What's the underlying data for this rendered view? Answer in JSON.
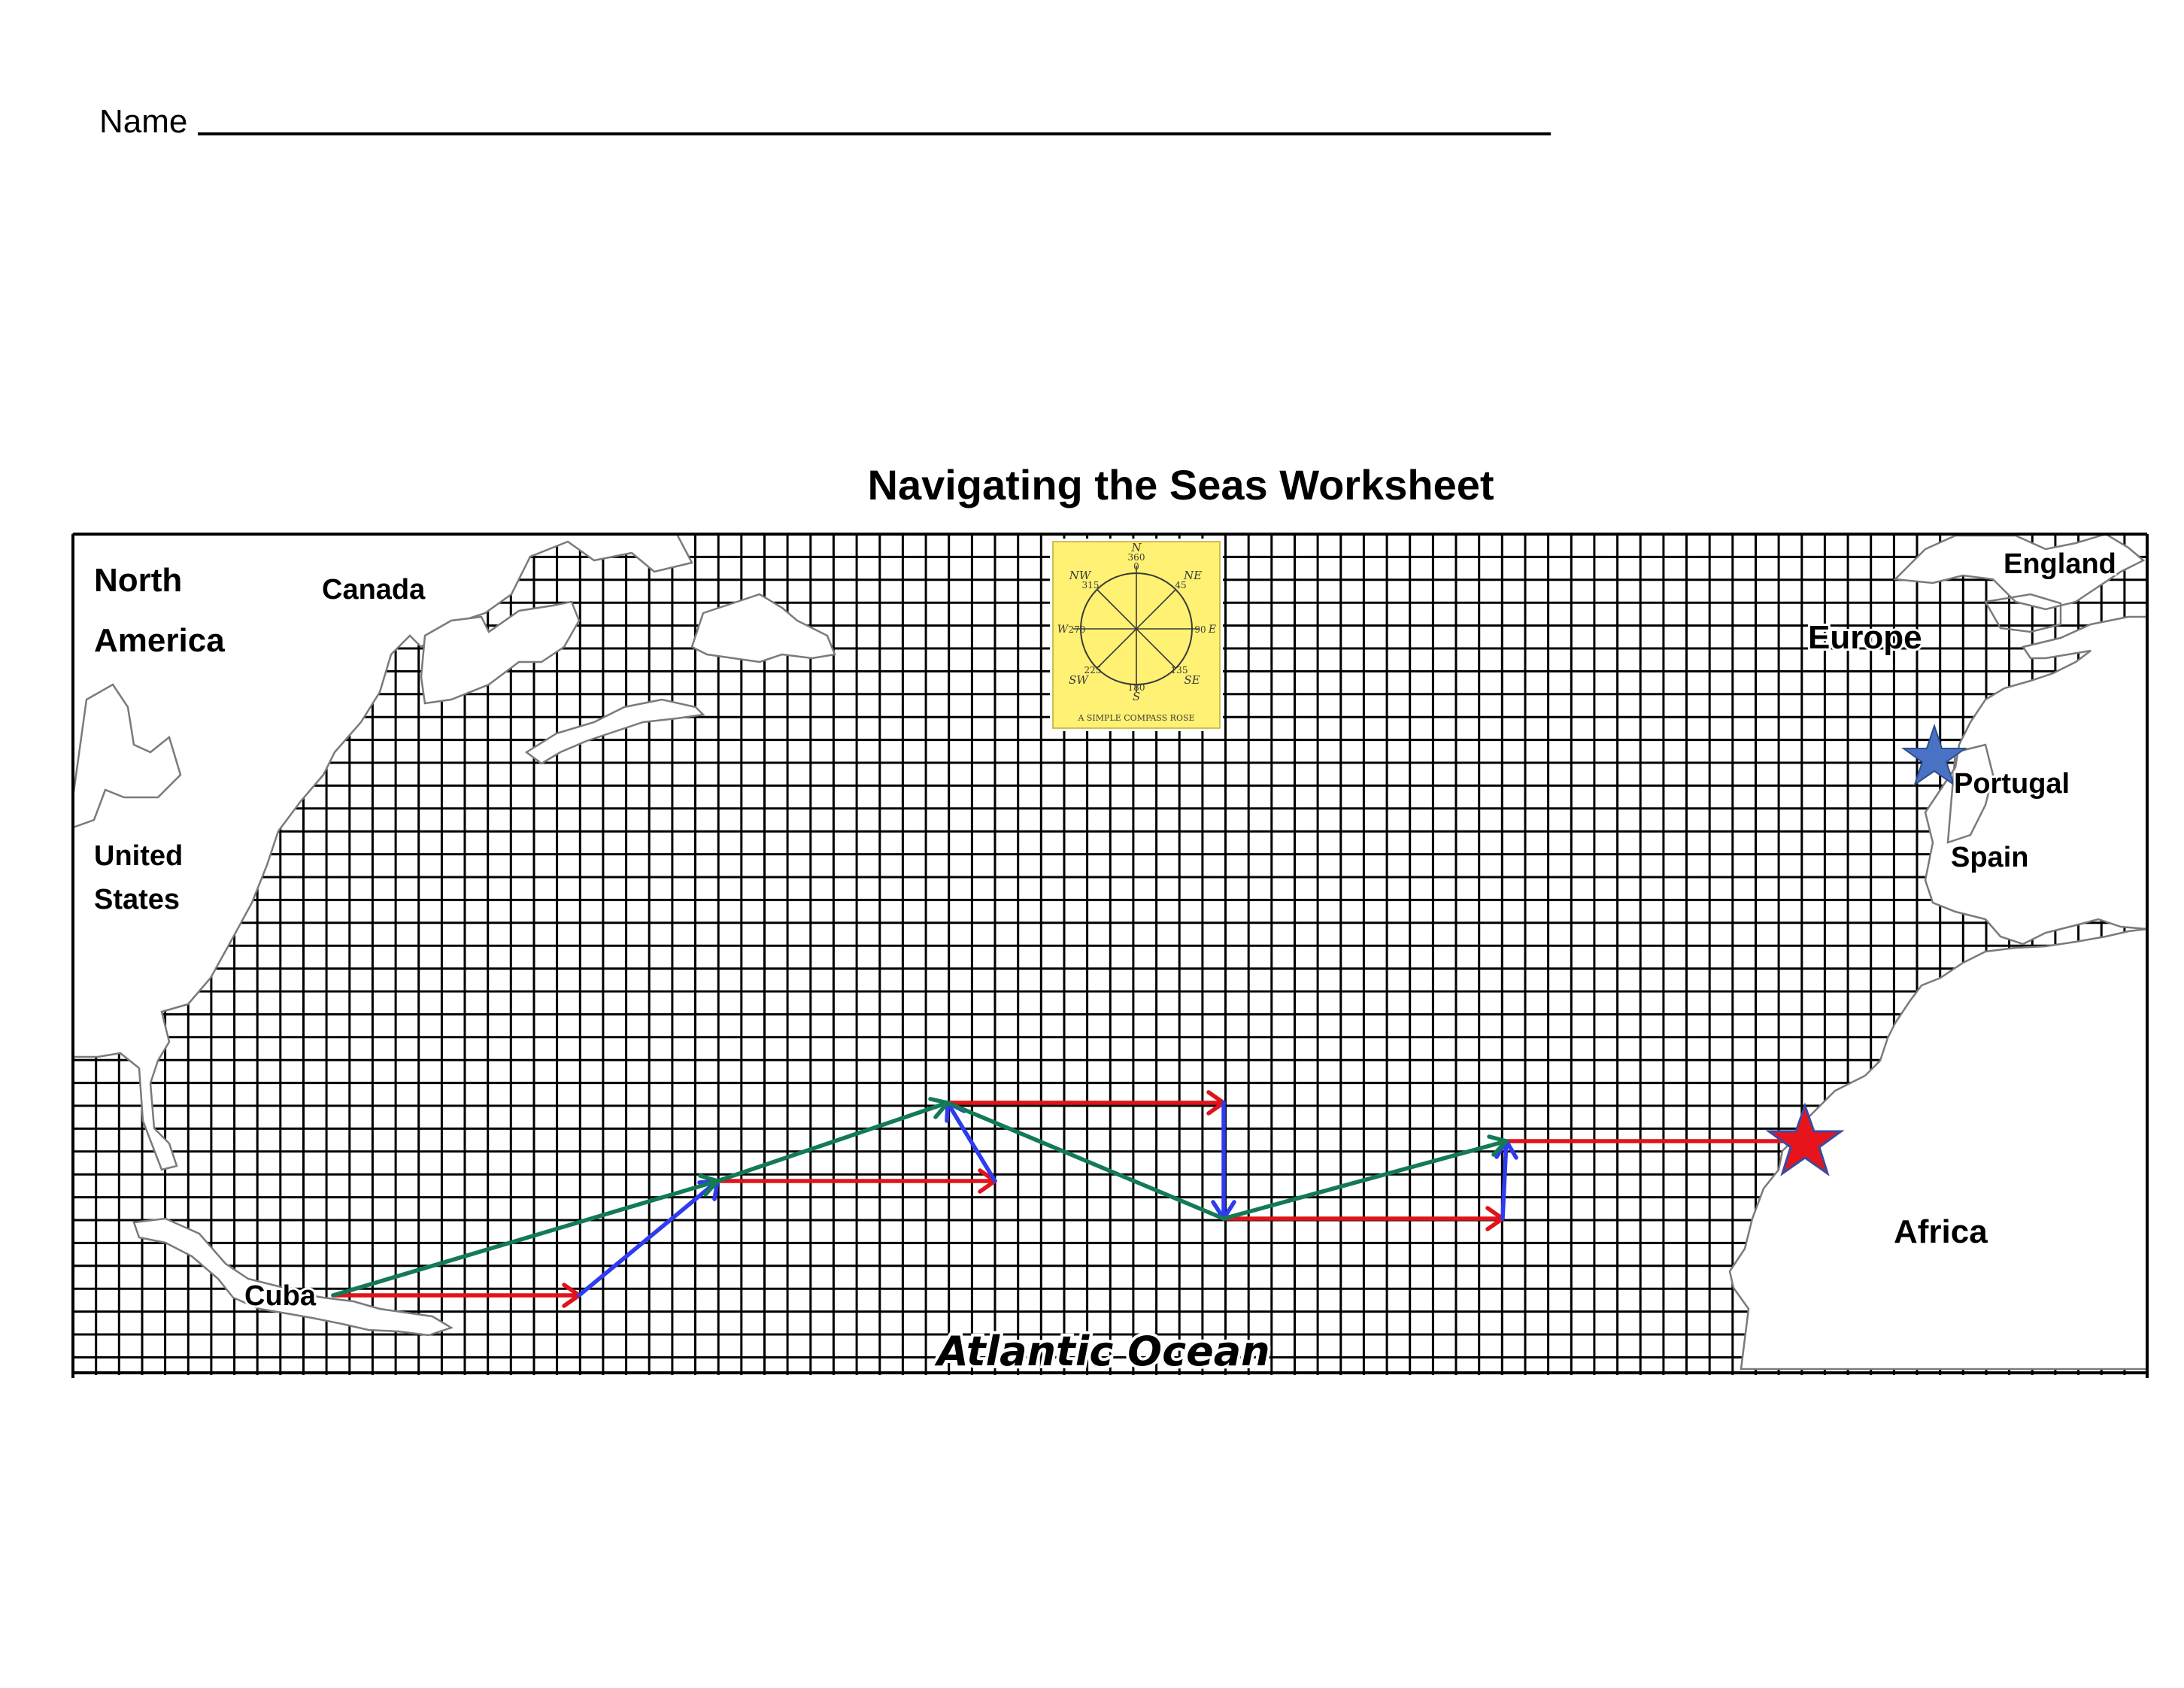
{
  "header": {
    "name_label": "Name"
  },
  "title": "Navigating the Seas Worksheet",
  "map": {
    "region_labels": {
      "north_america_line1": "North",
      "north_america_line2": "America",
      "canada": "Canada",
      "united_states_line1": "United",
      "united_states_line2": "States",
      "cuba": "Cuba",
      "europe": "Europe",
      "england": "England",
      "portugal": "Portugal",
      "spain": "Spain",
      "africa": "Africa",
      "ocean": "Atlantic Ocean"
    },
    "compass_rose": {
      "caption": "A SIMPLE COMPASS ROSE",
      "n": "N",
      "n_deg": "360",
      "n_deg2": "0",
      "ne": "NE",
      "ne_deg": "45",
      "e": "E",
      "e_deg": "90",
      "se": "SE",
      "se_deg": "135",
      "s": "S",
      "s_deg": "180",
      "sw": "SW",
      "sw_deg": "225",
      "w": "W",
      "w_deg": "270",
      "nw": "NW",
      "nw_deg": "315",
      "background_color": "#FFF173"
    },
    "colors": {
      "red_arrow": "#E0131B",
      "blue_arrow": "#2E3BF0",
      "green_arrow": "#137A55",
      "start_star": "#4A72C4",
      "end_star": "#E8141B"
    }
  }
}
